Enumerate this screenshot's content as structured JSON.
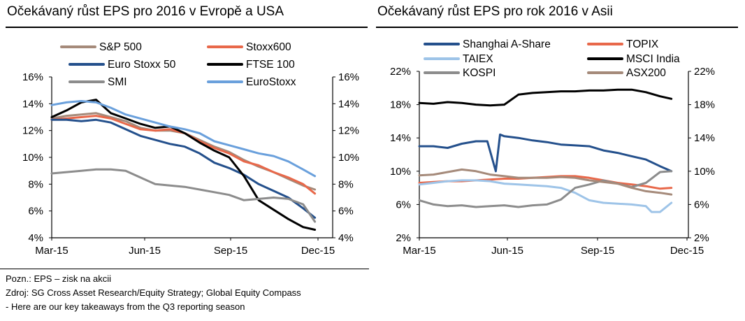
{
  "notes": {
    "line1": "Pozn.: EPS – zisk na akcii",
    "line2": "Zdroj: SG Cross Asset Research/Equity Strategy; Global Equity Compass",
    "line3": "- Here are our key takeaways from the Q3 reporting season"
  },
  "chart_data": [
    {
      "type": "line",
      "title": "Očekávaný růst EPS pro 2016 v Evropě a USA",
      "x_ticks": [
        "Mar-15",
        "Jun-15",
        "Sep-15",
        "Dec-15"
      ],
      "xlim": [
        0,
        9.5
      ],
      "ylim": [
        4,
        16
      ],
      "y_ticks": [
        "4%",
        "6%",
        "8%",
        "10%",
        "12%",
        "14%",
        "16%"
      ],
      "y_ticks_right": [
        "4%",
        "6%",
        "8%",
        "10%",
        "12%",
        "14%",
        "16%"
      ],
      "legend": "top, two columns",
      "grid": false,
      "series": [
        {
          "name": "S&P 500",
          "color": "#a58a7a",
          "width": 3,
          "x": [
            0,
            0.5,
            1,
            1.5,
            2,
            2.5,
            3,
            3.5,
            4,
            4.5,
            5,
            5.5,
            6,
            6.5,
            7,
            7.5,
            8,
            8.5,
            8.9
          ],
          "y": [
            12.9,
            13.1,
            13.2,
            13.3,
            13.0,
            12.7,
            12.2,
            12.0,
            12.0,
            11.8,
            11.3,
            10.8,
            10.4,
            9.8,
            9.3,
            8.9,
            8.4,
            7.9,
            7.6
          ]
        },
        {
          "name": "Stoxx600",
          "color": "#e8684a",
          "width": 3,
          "x": [
            0,
            0.5,
            1,
            1.5,
            2,
            2.5,
            3,
            3.5,
            4,
            4.5,
            5,
            5.5,
            6,
            6.5,
            7,
            7.5,
            8,
            8.5,
            8.9
          ],
          "y": [
            12.8,
            12.9,
            13.0,
            13.1,
            12.9,
            12.5,
            12.1,
            12.0,
            12.1,
            11.8,
            11.2,
            10.7,
            10.3,
            9.7,
            9.4,
            8.9,
            8.5,
            8.0,
            7.3
          ]
        },
        {
          "name": "Euro Stoxx 50",
          "color": "#24508c",
          "width": 3,
          "x": [
            0,
            0.5,
            1,
            1.5,
            2,
            2.5,
            3,
            3.5,
            4,
            4.5,
            5,
            5.5,
            6,
            6.5,
            7,
            7.5,
            8,
            8.5,
            8.9
          ],
          "y": [
            12.8,
            12.8,
            12.7,
            12.8,
            12.6,
            12.1,
            11.6,
            11.3,
            11.0,
            10.8,
            10.3,
            9.6,
            9.2,
            8.7,
            8.0,
            7.5,
            7.0,
            6.2,
            5.5
          ]
        },
        {
          "name": "FTSE 100",
          "color": "#000000",
          "width": 3,
          "x": [
            0,
            0.5,
            1,
            1.5,
            2,
            2.5,
            3,
            3.5,
            4,
            4.5,
            5,
            5.5,
            6,
            6.5,
            7,
            7.5,
            8,
            8.5,
            8.9
          ],
          "y": [
            13.0,
            13.5,
            14.1,
            14.3,
            13.3,
            12.9,
            12.5,
            12.2,
            12.3,
            11.8,
            11.1,
            10.5,
            10.0,
            8.6,
            6.8,
            6.1,
            5.4,
            4.8,
            4.6
          ]
        },
        {
          "name": "SMI",
          "color": "#8c8c8c",
          "width": 3,
          "x": [
            0,
            0.5,
            1,
            1.5,
            2,
            2.5,
            3,
            3.5,
            4,
            4.5,
            5,
            5.5,
            6,
            6.5,
            7,
            7.5,
            8,
            8.5,
            8.9
          ],
          "y": [
            8.8,
            8.9,
            9.0,
            9.1,
            9.1,
            9.0,
            8.5,
            8.0,
            7.9,
            7.8,
            7.6,
            7.4,
            7.2,
            6.8,
            6.9,
            7.0,
            6.9,
            6.5,
            5.2
          ]
        },
        {
          "name": "EuroStoxx",
          "color": "#6aa0dc",
          "width": 3,
          "x": [
            0,
            0.5,
            1,
            1.5,
            2,
            2.5,
            3,
            3.5,
            4,
            4.5,
            5,
            5.5,
            6,
            6.5,
            7,
            7.5,
            8,
            8.5,
            8.9
          ],
          "y": [
            13.9,
            14.1,
            14.2,
            14.1,
            13.7,
            13.2,
            12.9,
            12.6,
            12.3,
            12.1,
            11.8,
            11.2,
            10.9,
            10.6,
            10.3,
            10.1,
            9.7,
            9.1,
            8.6
          ]
        }
      ]
    },
    {
      "type": "line",
      "title": "Očekávaný růst EPS pro rok 2016 v Asii",
      "x_ticks": [
        "Mar-15",
        "Jun-15",
        "Sep-15",
        "Dec-15"
      ],
      "xlim": [
        0,
        9.5
      ],
      "ylim": [
        2,
        22
      ],
      "y_ticks": [
        "2%",
        "6%",
        "10%",
        "14%",
        "18%",
        "22%"
      ],
      "y_ticks_right": [
        "2%",
        "6%",
        "10%",
        "14%",
        "18%",
        "22%"
      ],
      "legend": "top, two columns",
      "grid": false,
      "series": [
        {
          "name": "Shanghai A-Share",
          "color": "#24508c",
          "width": 3,
          "x": [
            0,
            0.5,
            1,
            1.5,
            2,
            2.4,
            2.7,
            2.85,
            3.0,
            3.5,
            4,
            4.5,
            5,
            5.5,
            6,
            6.5,
            7,
            7.5,
            8,
            8.5,
            8.9
          ],
          "y": [
            13.0,
            13.0,
            12.8,
            13.3,
            13.6,
            13.6,
            10.0,
            14.4,
            14.2,
            14.0,
            13.7,
            13.5,
            13.2,
            13.1,
            13.0,
            12.5,
            12.2,
            11.8,
            11.4,
            10.6,
            10.0
          ]
        },
        {
          "name": "TOPIX",
          "color": "#e8684a",
          "width": 3,
          "x": [
            0,
            0.5,
            1,
            1.5,
            2,
            2.5,
            3,
            3.5,
            4,
            4.5,
            5,
            5.5,
            6,
            6.5,
            7,
            7.5,
            8,
            8.5,
            8.9
          ],
          "y": [
            8.6,
            8.7,
            8.8,
            8.8,
            8.9,
            9.0,
            9.1,
            9.1,
            9.2,
            9.3,
            9.4,
            9.4,
            9.2,
            8.9,
            8.6,
            8.4,
            8.2,
            7.9,
            8.0
          ]
        },
        {
          "name": "TAIEX",
          "color": "#9ec4e8",
          "width": 3,
          "x": [
            0,
            0.5,
            1,
            1.5,
            2,
            2.5,
            3,
            3.5,
            4,
            4.5,
            5,
            5.5,
            6,
            6.5,
            7,
            7.5,
            8,
            8.2,
            8.5,
            8.9
          ],
          "y": [
            8.4,
            8.6,
            8.8,
            8.9,
            8.9,
            8.8,
            8.5,
            8.4,
            8.3,
            8.2,
            8.0,
            7.4,
            6.5,
            6.2,
            6.1,
            6.0,
            5.8,
            5.1,
            5.1,
            6.2
          ]
        },
        {
          "name": "MSCI India",
          "color": "#000000",
          "width": 3,
          "x": [
            0,
            0.5,
            1,
            1.5,
            2,
            2.5,
            3,
            3.5,
            4,
            4.5,
            5,
            5.5,
            6,
            6.5,
            7,
            7.5,
            8,
            8.5,
            8.9
          ],
          "y": [
            18.2,
            18.1,
            18.3,
            18.2,
            18.0,
            17.9,
            18.0,
            19.2,
            19.4,
            19.5,
            19.6,
            19.6,
            19.7,
            19.7,
            19.8,
            19.8,
            19.5,
            19.0,
            18.7
          ]
        },
        {
          "name": "KOSPI",
          "color": "#8c8c8c",
          "width": 3,
          "x": [
            0,
            0.5,
            1,
            1.5,
            2,
            2.5,
            3,
            3.5,
            4,
            4.5,
            5,
            5.5,
            6,
            6.5,
            7,
            7.5,
            8,
            8.5,
            8.9
          ],
          "y": [
            6.5,
            6.0,
            5.8,
            5.9,
            5.7,
            5.8,
            5.9,
            5.7,
            5.9,
            6.0,
            6.6,
            8.0,
            8.4,
            8.9,
            8.5,
            8.1,
            8.6,
            9.9,
            10.0
          ]
        },
        {
          "name": "ASX200",
          "color": "#a58a7a",
          "width": 3,
          "x": [
            0,
            0.5,
            1,
            1.5,
            2,
            2.5,
            3,
            3.5,
            4,
            4.5,
            5,
            5.5,
            6,
            6.5,
            7,
            7.5,
            8,
            8.5,
            8.9
          ],
          "y": [
            9.5,
            9.6,
            9.9,
            10.2,
            10.0,
            9.6,
            9.4,
            9.2,
            9.2,
            9.2,
            9.3,
            9.2,
            8.9,
            8.7,
            8.5,
            8.0,
            7.6,
            7.4,
            7.2
          ]
        }
      ]
    }
  ]
}
